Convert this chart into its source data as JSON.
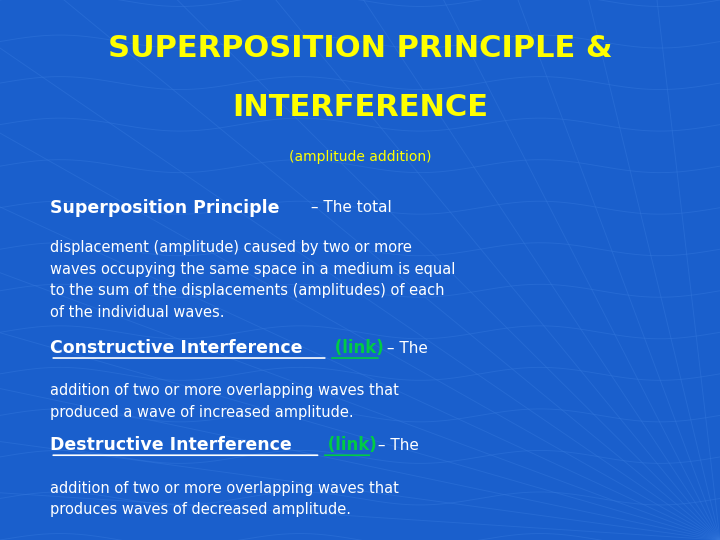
{
  "bg_color": "#1a5fcc",
  "title_line1": "SUPERPOSITION PRINCIPLE &",
  "title_line2": "INTERFERENCE",
  "subtitle": "(amplitude addition)",
  "title_color": "#ffff00",
  "subtitle_color": "#ffff00",
  "section1_bold": "Superposition Principle",
  "section1_dash": " – The total",
  "section1_body": "displacement (amplitude) caused by two or more\nwaves occupying the same space in a medium is equal\nto the sum of the displacements (amplitudes) of each\nof the individual waves.",
  "section2_bold": "Constructive Interference",
  "section2_link": " (link)",
  "section2_dash": " – The",
  "section2_body": "addition of two or more overlapping waves that\nproduced a wave of increased amplitude.",
  "section3_bold": "Destructive Interference",
  "section3_link": " (link)",
  "section3_dash": " – The",
  "section3_body": "addition of two or more overlapping waves that\nproduces waves of decreased amplitude.",
  "white_color": "#ffffff",
  "link_color": "#00cc44",
  "figsize": [
    7.2,
    5.4
  ],
  "dpi": 100
}
